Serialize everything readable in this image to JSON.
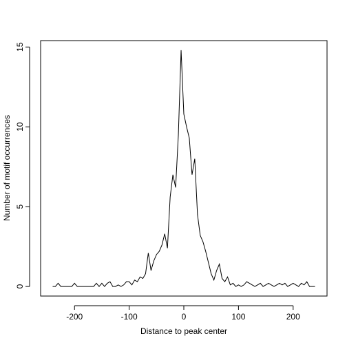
{
  "chart_data": {
    "type": "line",
    "x_label": "Distance to peak center",
    "y_label": "Number of motif occurrences",
    "x": [
      -240,
      -235,
      -230,
      -225,
      -220,
      -215,
      -210,
      -205,
      -200,
      -195,
      -190,
      -185,
      -180,
      -175,
      -170,
      -165,
      -160,
      -155,
      -150,
      -145,
      -140,
      -135,
      -130,
      -125,
      -120,
      -115,
      -110,
      -105,
      -100,
      -95,
      -90,
      -85,
      -80,
      -75,
      -70,
      -65,
      -60,
      -55,
      -50,
      -45,
      -40,
      -35,
      -30,
      -25,
      -20,
      -15,
      -10,
      -5,
      0,
      5,
      10,
      15,
      20,
      25,
      30,
      35,
      40,
      45,
      50,
      55,
      60,
      65,
      70,
      75,
      80,
      85,
      90,
      95,
      100,
      105,
      110,
      115,
      120,
      125,
      130,
      135,
      140,
      145,
      150,
      155,
      160,
      165,
      170,
      175,
      180,
      185,
      190,
      195,
      200,
      205,
      210,
      215,
      220,
      225,
      230,
      235,
      240
    ],
    "series": [
      {
        "color": "#000000",
        "values": [
          0,
          0,
          0.2,
          0,
          0,
          0,
          0,
          0,
          0.2,
          0,
          0,
          0,
          0,
          0,
          0,
          0,
          0.2,
          0,
          0.2,
          0,
          0.2,
          0.3,
          0,
          0,
          0.1,
          0,
          0.1,
          0.3,
          0.3,
          0.1,
          0.4,
          0.3,
          0.6,
          0.5,
          0.8,
          2.1,
          1.0,
          1.6,
          2.0,
          2.2,
          2.6,
          3.3,
          2.4,
          5.6,
          7.0,
          6.2,
          9.5,
          14.8,
          10.8,
          10.0,
          9.3,
          7.0,
          8.0,
          4.5,
          3.2,
          2.8,
          2.2,
          1.5,
          0.8,
          0.4,
          1.0,
          1.4,
          0.5,
          0.3,
          0.6,
          0.1,
          0.2,
          0,
          0.1,
          0,
          0.1,
          0.3,
          0.2,
          0.1,
          0,
          0.1,
          0.2,
          0,
          0.1,
          0.2,
          0.1,
          0,
          0.1,
          0.2,
          0.1,
          0.2,
          0,
          0.1,
          0.2,
          0.1,
          0,
          0.2,
          0.1,
          0.3,
          0,
          0,
          0
        ]
      }
    ],
    "xlim": [
      -262,
      262
    ],
    "ylim": [
      -0.6,
      15.4
    ],
    "xticks": [
      -200,
      -100,
      0,
      100,
      200
    ],
    "yticks": [
      0,
      5,
      10,
      15
    ]
  }
}
